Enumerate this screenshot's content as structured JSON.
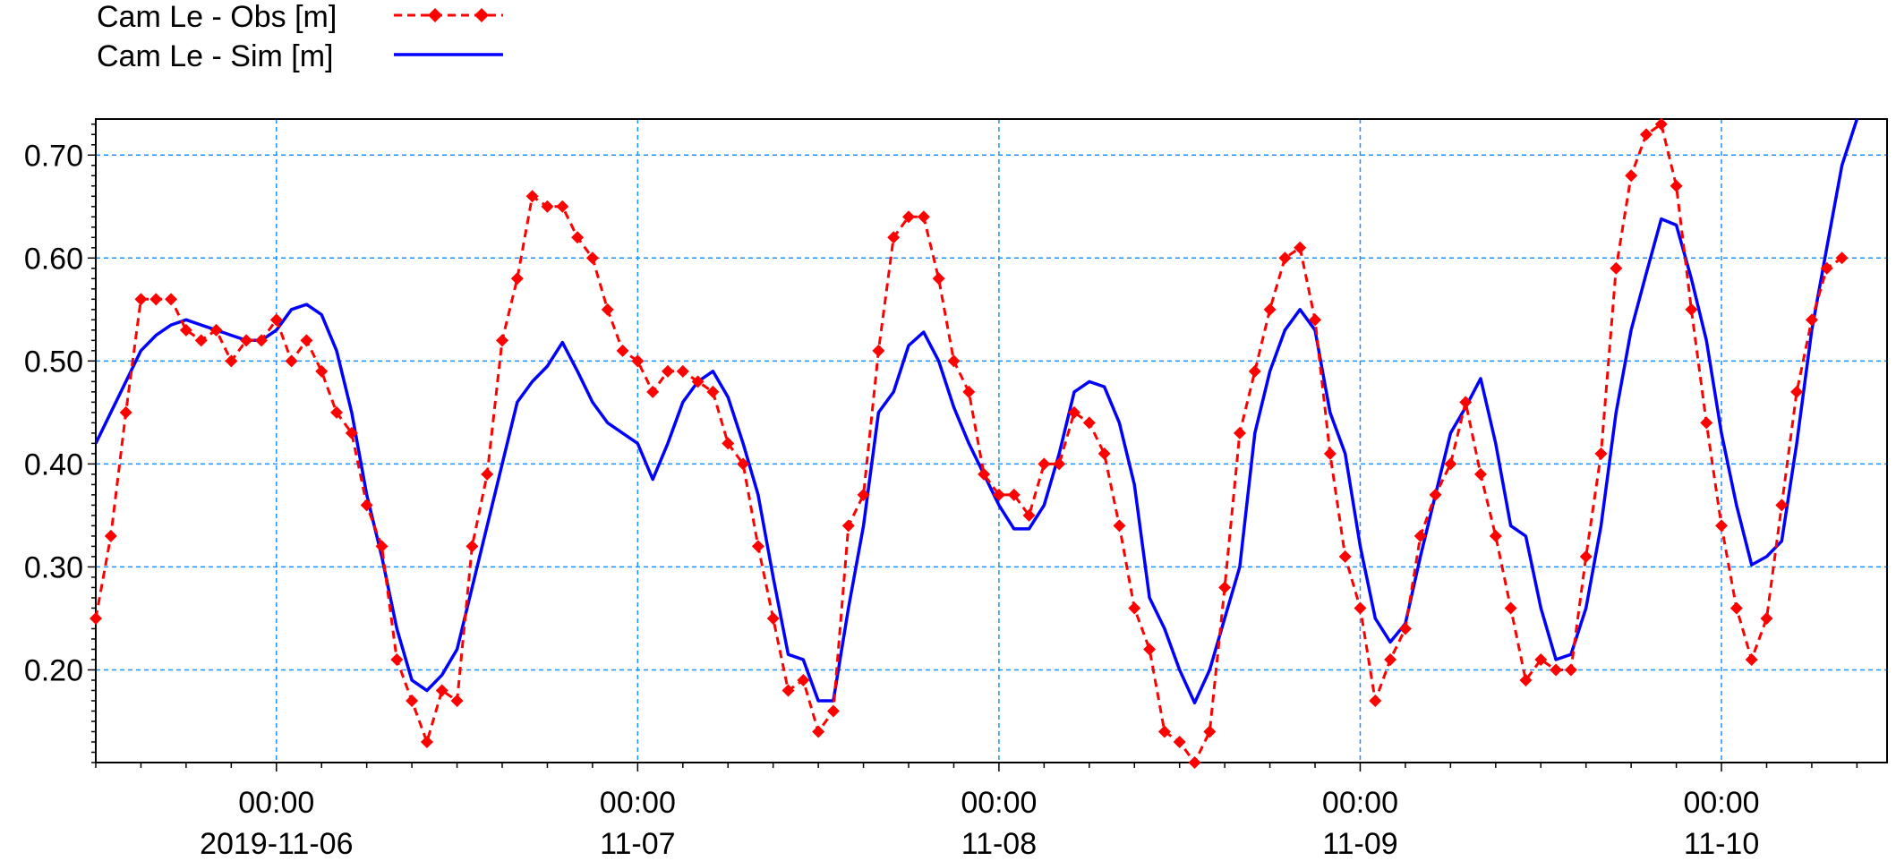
{
  "chart_data": {
    "type": "line",
    "grid": true,
    "legend_position": "top-left",
    "x_axis": {
      "type": "datetime",
      "range": [
        "2019-11-05 12:00",
        "2019-11-10 11:00"
      ],
      "ticks": [
        {
          "time": "00:00",
          "date": "2019-11-06"
        },
        {
          "time": "00:00",
          "date": "11-07"
        },
        {
          "time": "00:00",
          "date": "11-08"
        },
        {
          "time": "00:00",
          "date": "11-09"
        },
        {
          "time": "00:00",
          "date": "11-10"
        }
      ]
    },
    "y_axis": {
      "range": [
        0.11,
        0.735
      ],
      "ticks": [
        "0.20",
        "0.30",
        "0.40",
        "0.50",
        "0.60",
        "0.70"
      ]
    },
    "series": [
      {
        "name": "Cam Le - Obs [m]",
        "color": "#ff0000",
        "style": "dashed-with-diamond-markers",
        "points": [
          [
            "2019-11-05 12:00",
            0.25
          ],
          [
            "2019-11-05 13:00",
            0.33
          ],
          [
            "2019-11-05 14:00",
            0.45
          ],
          [
            "2019-11-05 15:00",
            0.56
          ],
          [
            "2019-11-05 16:00",
            0.56
          ],
          [
            "2019-11-05 17:00",
            0.56
          ],
          [
            "2019-11-05 18:00",
            0.53
          ],
          [
            "2019-11-05 19:00",
            0.52
          ],
          [
            "2019-11-05 20:00",
            0.53
          ],
          [
            "2019-11-05 21:00",
            0.5
          ],
          [
            "2019-11-05 22:00",
            0.52
          ],
          [
            "2019-11-05 23:00",
            0.52
          ],
          [
            "2019-11-06 00:00",
            0.54
          ],
          [
            "2019-11-06 01:00",
            0.5
          ],
          [
            "2019-11-06 02:00",
            0.52
          ],
          [
            "2019-11-06 03:00",
            0.49
          ],
          [
            "2019-11-06 04:00",
            0.45
          ],
          [
            "2019-11-06 05:00",
            0.43
          ],
          [
            "2019-11-06 06:00",
            0.36
          ],
          [
            "2019-11-06 07:00",
            0.32
          ],
          [
            "2019-11-06 08:00",
            0.21
          ],
          [
            "2019-11-06 09:00",
            0.17
          ],
          [
            "2019-11-06 10:00",
            0.13
          ],
          [
            "2019-11-06 11:00",
            0.18
          ],
          [
            "2019-11-06 12:00",
            0.17
          ],
          [
            "2019-11-06 13:00",
            0.32
          ],
          [
            "2019-11-06 14:00",
            0.39
          ],
          [
            "2019-11-06 15:00",
            0.52
          ],
          [
            "2019-11-06 16:00",
            0.58
          ],
          [
            "2019-11-06 17:00",
            0.66
          ],
          [
            "2019-11-06 18:00",
            0.65
          ],
          [
            "2019-11-06 19:00",
            0.65
          ],
          [
            "2019-11-06 20:00",
            0.62
          ],
          [
            "2019-11-06 21:00",
            0.6
          ],
          [
            "2019-11-06 22:00",
            0.55
          ],
          [
            "2019-11-06 23:00",
            0.51
          ],
          [
            "2019-11-07 00:00",
            0.5
          ],
          [
            "2019-11-07 01:00",
            0.47
          ],
          [
            "2019-11-07 02:00",
            0.49
          ],
          [
            "2019-11-07 03:00",
            0.49
          ],
          [
            "2019-11-07 04:00",
            0.48
          ],
          [
            "2019-11-07 05:00",
            0.47
          ],
          [
            "2019-11-07 06:00",
            0.42
          ],
          [
            "2019-11-07 07:00",
            0.4
          ],
          [
            "2019-11-07 08:00",
            0.32
          ],
          [
            "2019-11-07 09:00",
            0.25
          ],
          [
            "2019-11-07 10:00",
            0.18
          ],
          [
            "2019-11-07 11:00",
            0.19
          ],
          [
            "2019-11-07 12:00",
            0.14
          ],
          [
            "2019-11-07 13:00",
            0.16
          ],
          [
            "2019-11-07 14:00",
            0.34
          ],
          [
            "2019-11-07 15:00",
            0.37
          ],
          [
            "2019-11-07 16:00",
            0.51
          ],
          [
            "2019-11-07 17:00",
            0.62
          ],
          [
            "2019-11-07 18:00",
            0.64
          ],
          [
            "2019-11-07 19:00",
            0.64
          ],
          [
            "2019-11-07 20:00",
            0.58
          ],
          [
            "2019-11-07 21:00",
            0.5
          ],
          [
            "2019-11-07 22:00",
            0.47
          ],
          [
            "2019-11-07 23:00",
            0.39
          ],
          [
            "2019-11-08 00:00",
            0.37
          ],
          [
            "2019-11-08 01:00",
            0.37
          ],
          [
            "2019-11-08 02:00",
            0.35
          ],
          [
            "2019-11-08 03:00",
            0.4
          ],
          [
            "2019-11-08 04:00",
            0.4
          ],
          [
            "2019-11-08 05:00",
            0.45
          ],
          [
            "2019-11-08 06:00",
            0.44
          ],
          [
            "2019-11-08 07:00",
            0.41
          ],
          [
            "2019-11-08 08:00",
            0.34
          ],
          [
            "2019-11-08 09:00",
            0.26
          ],
          [
            "2019-11-08 10:00",
            0.22
          ],
          [
            "2019-11-08 11:00",
            0.14
          ],
          [
            "2019-11-08 12:00",
            0.13
          ],
          [
            "2019-11-08 13:00",
            0.11
          ],
          [
            "2019-11-08 14:00",
            0.14
          ],
          [
            "2019-11-08 15:00",
            0.28
          ],
          [
            "2019-11-08 16:00",
            0.43
          ],
          [
            "2019-11-08 17:00",
            0.49
          ],
          [
            "2019-11-08 18:00",
            0.55
          ],
          [
            "2019-11-08 19:00",
            0.6
          ],
          [
            "2019-11-08 20:00",
            0.61
          ],
          [
            "2019-11-08 21:00",
            0.54
          ],
          [
            "2019-11-08 22:00",
            0.41
          ],
          [
            "2019-11-08 23:00",
            0.31
          ],
          [
            "2019-11-09 00:00",
            0.26
          ],
          [
            "2019-11-09 01:00",
            0.17
          ],
          [
            "2019-11-09 02:00",
            0.21
          ],
          [
            "2019-11-09 03:00",
            0.24
          ],
          [
            "2019-11-09 04:00",
            0.33
          ],
          [
            "2019-11-09 05:00",
            0.37
          ],
          [
            "2019-11-09 06:00",
            0.4
          ],
          [
            "2019-11-09 07:00",
            0.46
          ],
          [
            "2019-11-09 08:00",
            0.39
          ],
          [
            "2019-11-09 09:00",
            0.33
          ],
          [
            "2019-11-09 10:00",
            0.26
          ],
          [
            "2019-11-09 11:00",
            0.19
          ],
          [
            "2019-11-09 12:00",
            0.21
          ],
          [
            "2019-11-09 13:00",
            0.2
          ],
          [
            "2019-11-09 14:00",
            0.2
          ],
          [
            "2019-11-09 15:00",
            0.31
          ],
          [
            "2019-11-09 16:00",
            0.41
          ],
          [
            "2019-11-09 17:00",
            0.59
          ],
          [
            "2019-11-09 18:00",
            0.68
          ],
          [
            "2019-11-09 19:00",
            0.72
          ],
          [
            "2019-11-09 20:00",
            0.73
          ],
          [
            "2019-11-09 21:00",
            0.67
          ],
          [
            "2019-11-09 22:00",
            0.55
          ],
          [
            "2019-11-09 23:00",
            0.44
          ],
          [
            "2019-11-10 00:00",
            0.34
          ],
          [
            "2019-11-10 01:00",
            0.26
          ],
          [
            "2019-11-10 02:00",
            0.21
          ],
          [
            "2019-11-10 03:00",
            0.25
          ],
          [
            "2019-11-10 04:00",
            0.36
          ],
          [
            "2019-11-10 05:00",
            0.47
          ],
          [
            "2019-11-10 06:00",
            0.54
          ],
          [
            "2019-11-10 07:00",
            0.59
          ],
          [
            "2019-11-10 08:00",
            0.6
          ]
        ]
      },
      {
        "name": "Cam Le - Sim [m]",
        "color": "#0000ff",
        "style": "solid",
        "points": [
          [
            "2019-11-05 12:00",
            0.42
          ],
          [
            "2019-11-05 13:00",
            0.45
          ],
          [
            "2019-11-05 14:00",
            0.48
          ],
          [
            "2019-11-05 15:00",
            0.51
          ],
          [
            "2019-11-05 16:00",
            0.525
          ],
          [
            "2019-11-05 17:00",
            0.535
          ],
          [
            "2019-11-05 18:00",
            0.54
          ],
          [
            "2019-11-05 19:00",
            0.535
          ],
          [
            "2019-11-05 20:00",
            0.53
          ],
          [
            "2019-11-05 21:00",
            0.525
          ],
          [
            "2019-11-05 22:00",
            0.52
          ],
          [
            "2019-11-05 23:00",
            0.52
          ],
          [
            "2019-11-06 00:00",
            0.53
          ],
          [
            "2019-11-06 01:00",
            0.55
          ],
          [
            "2019-11-06 02:00",
            0.555
          ],
          [
            "2019-11-06 03:00",
            0.545
          ],
          [
            "2019-11-06 04:00",
            0.51
          ],
          [
            "2019-11-06 05:00",
            0.45
          ],
          [
            "2019-11-06 06:00",
            0.37
          ],
          [
            "2019-11-06 07:00",
            0.31
          ],
          [
            "2019-11-06 08:00",
            0.24
          ],
          [
            "2019-11-06 09:00",
            0.19
          ],
          [
            "2019-11-06 10:00",
            0.18
          ],
          [
            "2019-11-06 11:00",
            0.195
          ],
          [
            "2019-11-06 12:00",
            0.22
          ],
          [
            "2019-11-06 13:00",
            0.28
          ],
          [
            "2019-11-06 14:00",
            0.34
          ],
          [
            "2019-11-06 15:00",
            0.4
          ],
          [
            "2019-11-06 16:00",
            0.46
          ],
          [
            "2019-11-06 17:00",
            0.48
          ],
          [
            "2019-11-06 18:00",
            0.495
          ],
          [
            "2019-11-06 19:00",
            0.518
          ],
          [
            "2019-11-06 20:00",
            0.49
          ],
          [
            "2019-11-06 21:00",
            0.46
          ],
          [
            "2019-11-06 22:00",
            0.44
          ],
          [
            "2019-11-06 23:00",
            0.43
          ],
          [
            "2019-11-07 00:00",
            0.42
          ],
          [
            "2019-11-07 01:00",
            0.385
          ],
          [
            "2019-11-07 02:00",
            0.42
          ],
          [
            "2019-11-07 03:00",
            0.46
          ],
          [
            "2019-11-07 04:00",
            0.48
          ],
          [
            "2019-11-07 05:00",
            0.49
          ],
          [
            "2019-11-07 06:00",
            0.465
          ],
          [
            "2019-11-07 07:00",
            0.42
          ],
          [
            "2019-11-07 08:00",
            0.37
          ],
          [
            "2019-11-07 09:00",
            0.29
          ],
          [
            "2019-11-07 10:00",
            0.215
          ],
          [
            "2019-11-07 11:00",
            0.21
          ],
          [
            "2019-11-07 12:00",
            0.17
          ],
          [
            "2019-11-07 13:00",
            0.17
          ],
          [
            "2019-11-07 14:00",
            0.26
          ],
          [
            "2019-11-07 15:00",
            0.34
          ],
          [
            "2019-11-07 16:00",
            0.45
          ],
          [
            "2019-11-07 17:00",
            0.47
          ],
          [
            "2019-11-07 18:00",
            0.515
          ],
          [
            "2019-11-07 19:00",
            0.528
          ],
          [
            "2019-11-07 20:00",
            0.5
          ],
          [
            "2019-11-07 21:00",
            0.455
          ],
          [
            "2019-11-07 22:00",
            0.42
          ],
          [
            "2019-11-07 23:00",
            0.39
          ],
          [
            "2019-11-08 00:00",
            0.36
          ],
          [
            "2019-11-08 01:00",
            0.337
          ],
          [
            "2019-11-08 02:00",
            0.337
          ],
          [
            "2019-11-08 03:00",
            0.36
          ],
          [
            "2019-11-08 04:00",
            0.41
          ],
          [
            "2019-11-08 05:00",
            0.47
          ],
          [
            "2019-11-08 06:00",
            0.48
          ],
          [
            "2019-11-08 07:00",
            0.475
          ],
          [
            "2019-11-08 08:00",
            0.44
          ],
          [
            "2019-11-08 09:00",
            0.38
          ],
          [
            "2019-11-08 10:00",
            0.27
          ],
          [
            "2019-11-08 11:00",
            0.24
          ],
          [
            "2019-11-08 12:00",
            0.2
          ],
          [
            "2019-11-08 13:00",
            0.168
          ],
          [
            "2019-11-08 14:00",
            0.2
          ],
          [
            "2019-11-08 15:00",
            0.25
          ],
          [
            "2019-11-08 16:00",
            0.3
          ],
          [
            "2019-11-08 17:00",
            0.43
          ],
          [
            "2019-11-08 18:00",
            0.49
          ],
          [
            "2019-11-08 19:00",
            0.53
          ],
          [
            "2019-11-08 20:00",
            0.55
          ],
          [
            "2019-11-08 21:00",
            0.53
          ],
          [
            "2019-11-08 22:00",
            0.45
          ],
          [
            "2019-11-08 23:00",
            0.41
          ],
          [
            "2019-11-09 00:00",
            0.32
          ],
          [
            "2019-11-09 01:00",
            0.25
          ],
          [
            "2019-11-09 02:00",
            0.227
          ],
          [
            "2019-11-09 03:00",
            0.245
          ],
          [
            "2019-11-09 04:00",
            0.31
          ],
          [
            "2019-11-09 05:00",
            0.37
          ],
          [
            "2019-11-09 06:00",
            0.43
          ],
          [
            "2019-11-09 07:00",
            0.455
          ],
          [
            "2019-11-09 08:00",
            0.483
          ],
          [
            "2019-11-09 09:00",
            0.42
          ],
          [
            "2019-11-09 10:00",
            0.34
          ],
          [
            "2019-11-09 11:00",
            0.33
          ],
          [
            "2019-11-09 12:00",
            0.26
          ],
          [
            "2019-11-09 13:00",
            0.21
          ],
          [
            "2019-11-09 14:00",
            0.215
          ],
          [
            "2019-11-09 15:00",
            0.26
          ],
          [
            "2019-11-09 16:00",
            0.34
          ],
          [
            "2019-11-09 17:00",
            0.45
          ],
          [
            "2019-11-09 18:00",
            0.53
          ],
          [
            "2019-11-09 19:00",
            0.585
          ],
          [
            "2019-11-09 20:00",
            0.638
          ],
          [
            "2019-11-09 21:00",
            0.632
          ],
          [
            "2019-11-09 22:00",
            0.58
          ],
          [
            "2019-11-09 23:00",
            0.52
          ],
          [
            "2019-11-10 00:00",
            0.43
          ],
          [
            "2019-11-10 01:00",
            0.36
          ],
          [
            "2019-11-10 02:00",
            0.302
          ],
          [
            "2019-11-10 03:00",
            0.31
          ],
          [
            "2019-11-10 04:00",
            0.325
          ],
          [
            "2019-11-10 05:00",
            0.42
          ],
          [
            "2019-11-10 06:00",
            0.53
          ],
          [
            "2019-11-10 07:00",
            0.61
          ],
          [
            "2019-11-10 08:00",
            0.69
          ],
          [
            "2019-11-10 09:00",
            0.735
          ]
        ]
      }
    ]
  }
}
